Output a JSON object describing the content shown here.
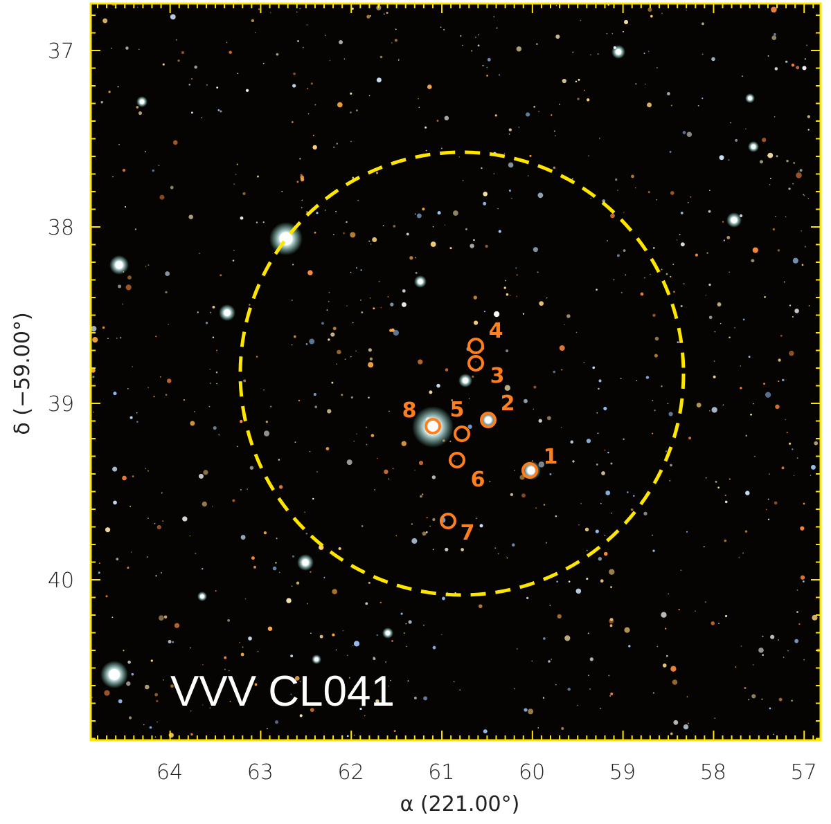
{
  "figure": {
    "cluster_name": "VVV CL041",
    "x_axis": {
      "label": "α  (221.00°)",
      "ticks": [
        "64",
        "63",
        "62",
        "61",
        "60",
        "59",
        "58",
        "57"
      ]
    },
    "y_axis": {
      "label": "δ  (−59.00°)",
      "ticks": [
        "37",
        "38",
        "39",
        "40"
      ]
    },
    "frame_color": "#ffe600",
    "circle_color": "#ffe600",
    "marker_color": "#ff7f1e",
    "markers": [
      {
        "label": "1"
      },
      {
        "label": "2"
      },
      {
        "label": "3"
      },
      {
        "label": "4"
      },
      {
        "label": "5"
      },
      {
        "label": "6"
      },
      {
        "label": "7"
      },
      {
        "label": "8"
      }
    ]
  }
}
